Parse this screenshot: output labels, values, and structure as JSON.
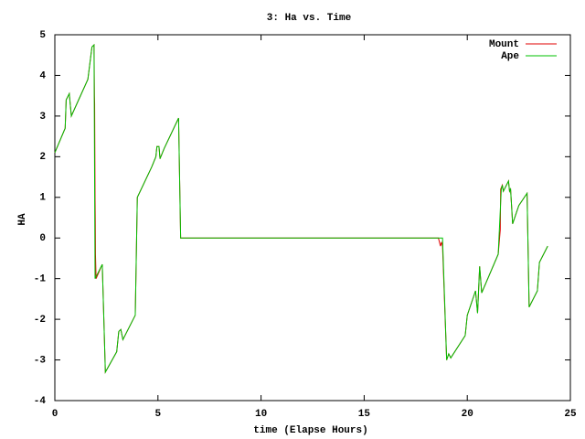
{
  "chart_data": {
    "type": "line",
    "title": "3: Ha vs. Time",
    "x_label": "time (Elapse Hours)",
    "y_label": "HA",
    "xlim": [
      0,
      25
    ],
    "ylim": [
      -4,
      5
    ],
    "xticks": [
      0,
      5,
      10,
      15,
      20,
      25
    ],
    "yticks": [
      -4,
      -3,
      -2,
      -1,
      0,
      1,
      2,
      3,
      4,
      5
    ],
    "legend": "top-right",
    "series": [
      {
        "name": "Mount",
        "color": "#e00000",
        "x": [
          0,
          0.5,
          0.55,
          0.7,
          0.8,
          1.6,
          1.8,
          1.9,
          1.92,
          1.93,
          1.95,
          1.96,
          1.97,
          2.0,
          2.3,
          2.45,
          3.0,
          3.1,
          3.2,
          3.3,
          3.9,
          4.0,
          4.7,
          4.9,
          4.95,
          5.05,
          5.1,
          5.3,
          6.0,
          6.1,
          18.6,
          18.7,
          18.75,
          18.8,
          19.0,
          19.1,
          19.2,
          19.9,
          20.0,
          20.4,
          20.5,
          20.6,
          20.7,
          21.5,
          21.6,
          21.62,
          21.7,
          21.75,
          22.0,
          22.05,
          22.1,
          22.2,
          22.5,
          22.9,
          23.0,
          23.4,
          23.5,
          23.9
        ],
        "values": [
          2.1,
          2.7,
          3.4,
          3.55,
          3.0,
          3.9,
          4.7,
          4.75,
          3.5,
          3.3,
          1.0,
          0.45,
          -0.4,
          -1.0,
          -0.65,
          -3.3,
          -2.8,
          -2.3,
          -2.25,
          -2.5,
          -1.9,
          1.0,
          1.75,
          2.0,
          2.25,
          2.25,
          1.95,
          2.2,
          2.95,
          0.0,
          0.0,
          -0.2,
          -0.1,
          -0.2,
          -3.0,
          -2.85,
          -2.95,
          -2.4,
          -1.9,
          -1.3,
          -1.85,
          -0.7,
          -1.35,
          -0.4,
          0.2,
          1.2,
          1.3,
          1.15,
          1.4,
          1.15,
          1.2,
          0.35,
          0.8,
          1.1,
          -1.7,
          -1.3,
          -0.6,
          -0.2
        ]
      },
      {
        "name": "Ape",
        "color": "#00c000",
        "x": [
          0,
          0.5,
          0.55,
          0.7,
          0.8,
          1.6,
          1.8,
          1.9,
          1.95,
          2.3,
          2.45,
          3.0,
          3.1,
          3.2,
          3.3,
          3.9,
          4.0,
          4.7,
          4.9,
          4.95,
          5.05,
          5.1,
          5.3,
          6.0,
          6.1,
          18.6,
          18.8,
          19.0,
          19.1,
          19.2,
          19.9,
          20.0,
          20.4,
          20.5,
          20.6,
          20.7,
          21.5,
          21.65,
          21.7,
          21.75,
          22.0,
          22.05,
          22.1,
          22.2,
          22.5,
          22.9,
          23.0,
          23.4,
          23.5,
          23.9
        ],
        "values": [
          2.1,
          2.7,
          3.4,
          3.55,
          3.0,
          3.9,
          4.7,
          4.75,
          -1.0,
          -0.65,
          -3.3,
          -2.8,
          -2.3,
          -2.25,
          -2.5,
          -1.9,
          1.0,
          1.75,
          2.0,
          2.25,
          2.25,
          1.95,
          2.2,
          2.95,
          0.0,
          0.0,
          0.0,
          -3.0,
          -2.85,
          -2.95,
          -2.4,
          -1.9,
          -1.3,
          -1.85,
          -0.7,
          -1.35,
          -0.4,
          1.2,
          1.3,
          1.15,
          1.4,
          1.15,
          1.2,
          0.35,
          0.8,
          1.1,
          -1.7,
          -1.3,
          -0.6,
          -0.2
        ]
      }
    ]
  }
}
